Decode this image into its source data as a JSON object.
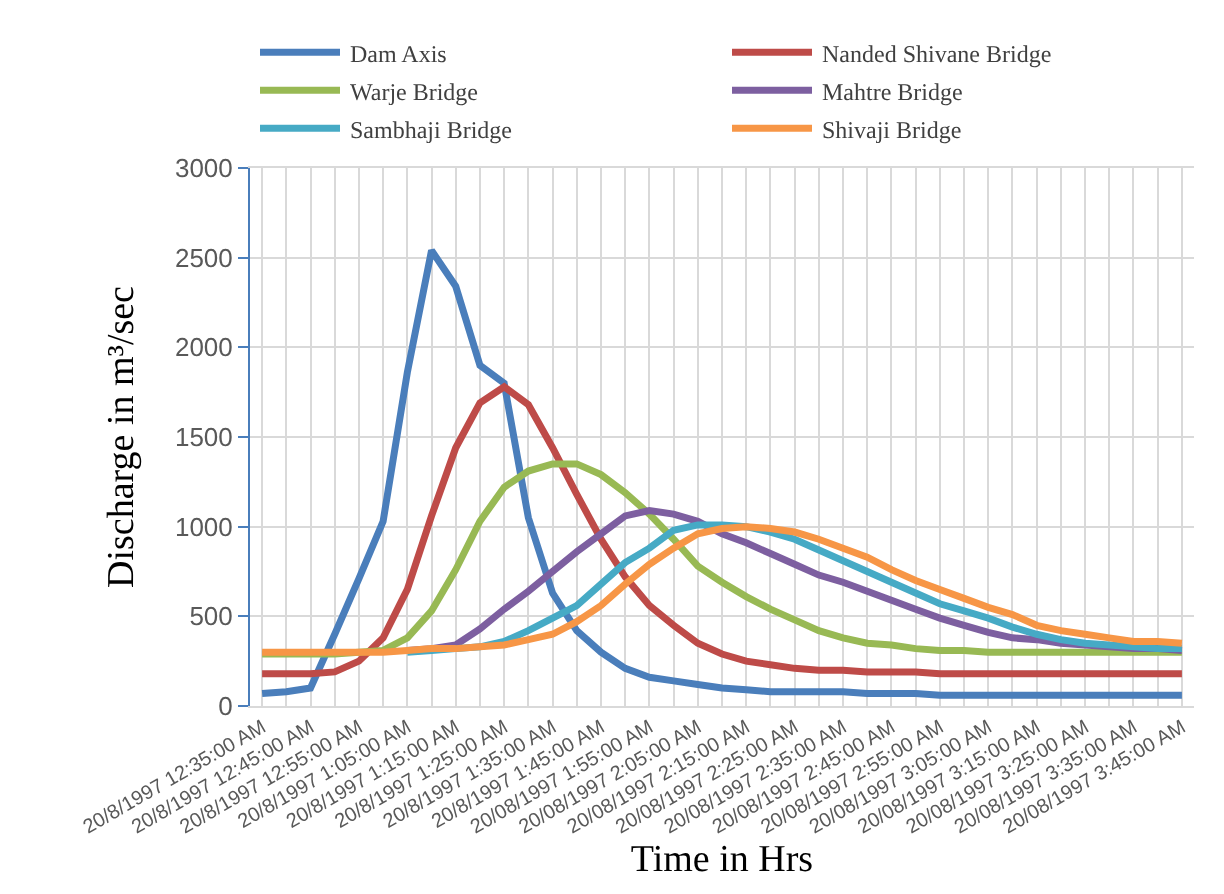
{
  "chart_data": {
    "type": "line",
    "xlabel": "Time in Hrs",
    "ylabel": "Discharge in m³/sec",
    "categories": [
      "20/8/1997 12:35:00 AM",
      null,
      "20/8/1997 12:45:00 AM",
      null,
      "20/8/1997 12:55:00 AM",
      null,
      "20/8/1997 1:05:00 AM",
      null,
      "20/8/1997 1:15:00 AM",
      null,
      "20/8/1997 1:25:00 AM",
      null,
      "20/8/1997 1:35:00 AM",
      null,
      "20/8/1997 1:45:00 AM",
      null,
      "20/08/1997 1:55:00 AM",
      null,
      "20/08/1997 2:05:00 AM",
      null,
      "20/08/1997 2:15:00 AM",
      null,
      "20/08/1997 2:25:00 AM",
      null,
      "20/08/1997 2:35:00 AM",
      null,
      "20/08/1997 2:45:00 AM",
      null,
      "20/08/1997 2:55:00 AM",
      null,
      "20/08/1997 3:05:00 AM",
      null,
      "20/08/1997 3:15:00 AM",
      null,
      "20/08/1997 3:25:00 AM",
      null,
      "20/08/1997 3:35:00 AM",
      null,
      "20/08/1997 3:45:00 AM"
    ],
    "series": [
      {
        "name": "Dam Axis",
        "color": "#4a7ebb",
        "values": [
          70,
          80,
          100,
          400,
          710,
          1030,
          1860,
          2540,
          2340,
          1900,
          1800,
          1050,
          630,
          420,
          300,
          210,
          160,
          140,
          120,
          100,
          90,
          80,
          80,
          80,
          80,
          70,
          70,
          70,
          60,
          60,
          60,
          60,
          60,
          60,
          60,
          60,
          60,
          60,
          60
        ]
      },
      {
        "name": "Nanded Shivane Bridge",
        "color": "#be4b48",
        "values": [
          180,
          180,
          180,
          190,
          250,
          380,
          650,
          1060,
          1440,
          1690,
          1780,
          1680,
          1440,
          1180,
          930,
          720,
          560,
          450,
          350,
          290,
          250,
          230,
          210,
          200,
          200,
          190,
          190,
          190,
          180,
          180,
          180,
          180,
          180,
          180,
          180,
          180,
          180,
          180,
          180
        ]
      },
      {
        "name": "Warje Bridge",
        "color": "#98b954",
        "values": [
          290,
          290,
          290,
          290,
          300,
          310,
          380,
          530,
          760,
          1030,
          1220,
          1310,
          1350,
          1350,
          1290,
          1190,
          1070,
          930,
          780,
          690,
          610,
          540,
          480,
          420,
          380,
          350,
          340,
          320,
          310,
          310,
          300,
          300,
          300,
          300,
          300,
          300,
          300,
          300,
          300
        ]
      },
      {
        "name": "Mahtre Bridge",
        "color": "#7d5fa0",
        "values": [
          null,
          null,
          null,
          null,
          null,
          null,
          310,
          320,
          340,
          430,
          540,
          640,
          750,
          860,
          960,
          1060,
          1090,
          1070,
          1030,
          960,
          910,
          850,
          790,
          730,
          690,
          640,
          590,
          540,
          490,
          450,
          410,
          380,
          370,
          350,
          340,
          330,
          320,
          320,
          310
        ]
      },
      {
        "name": "Sambhaji Bridge",
        "color": "#46aac5",
        "values": [
          null,
          null,
          null,
          null,
          null,
          null,
          300,
          310,
          320,
          330,
          360,
          420,
          490,
          560,
          680,
          800,
          880,
          980,
          1010,
          1010,
          1000,
          970,
          930,
          870,
          810,
          750,
          690,
          630,
          570,
          530,
          490,
          440,
          400,
          370,
          350,
          340,
          330,
          320,
          320
        ]
      },
      {
        "name": "Shivaji Bridge",
        "color": "#f79646",
        "values": [
          300,
          300,
          300,
          300,
          300,
          300,
          310,
          320,
          320,
          330,
          340,
          370,
          400,
          470,
          560,
          680,
          790,
          880,
          960,
          990,
          1000,
          990,
          970,
          930,
          880,
          830,
          760,
          700,
          650,
          600,
          550,
          510,
          450,
          420,
          400,
          380,
          360,
          360,
          350
        ]
      }
    ],
    "ylim": [
      0,
      3000
    ],
    "yticks": [
      0,
      500,
      1000,
      1500,
      2000,
      2500,
      3000
    ],
    "grid": true,
    "legend": "top",
    "marker": "none",
    "line_style": "solid"
  }
}
